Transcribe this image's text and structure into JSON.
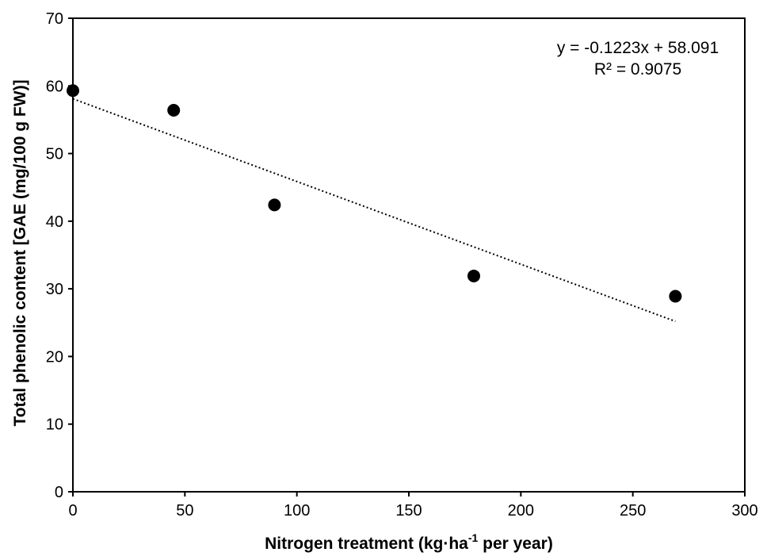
{
  "chart_data": {
    "type": "scatter",
    "xlabel": {
      "main": "Nitrogen treatment (kg·ha",
      "sup": "-1",
      "suffix": " per year)"
    },
    "ylabel": "Total phenolic content [GAE (mg/100 g FW)]",
    "xlim": [
      0,
      300
    ],
    "ylim": [
      0,
      70
    ],
    "x_ticks": [
      0,
      50,
      100,
      150,
      200,
      250,
      300
    ],
    "y_ticks": [
      0,
      10,
      20,
      30,
      40,
      50,
      60,
      70
    ],
    "grid": false,
    "legend": "none",
    "series": [
      {
        "x": [
          0,
          45,
          90,
          179,
          269
        ],
        "y": [
          59.3,
          56.4,
          42.4,
          31.9,
          28.9
        ],
        "marker": "filled-circle",
        "color": "#000000"
      }
    ],
    "trendline": {
      "type": "linear",
      "slope": -0.1223,
      "intercept": 58.091,
      "x_range": [
        0,
        269
      ],
      "style": "dotted",
      "color": "#000000"
    },
    "annotations": [
      "y = -0.1223x + 58.091",
      "R² = 0.9075"
    ]
  }
}
